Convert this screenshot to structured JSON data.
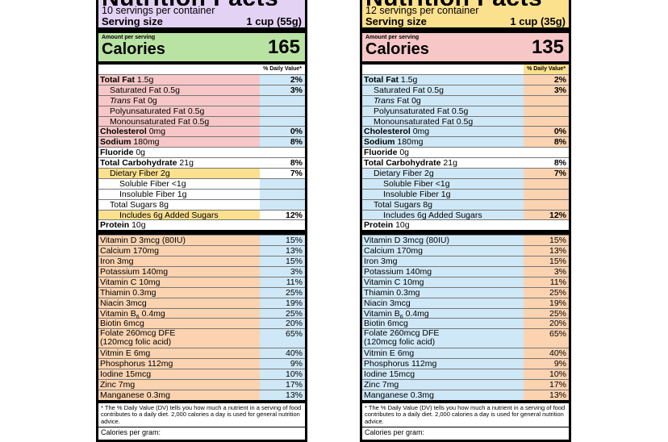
{
  "labels": [
    {
      "title": "Nutrition Facts",
      "servings": "10 servings per container",
      "serving_size_label": "Serving size",
      "serving_size_value": "1 cup (55g)",
      "amount_per_serving": "Amount per serving",
      "calories_label": "Calories",
      "calories_value": "165",
      "dv_header": "% Daily Value*",
      "colors": {
        "title_band": "#e4d2f5",
        "calories_band": "#b9e3a3",
        "fat_block": "#f7c7c7",
        "sodium_block": "#f7c7c7",
        "fiber_row": "#fbe08e",
        "added_sugar_row": "#fbe08e",
        "dv_column": "#cfe8f7",
        "vitamins_block": "#fbd3b0"
      },
      "nutrients": [
        {
          "name": "Total Fat",
          "amount": "1.5g",
          "dv": "2%",
          "indent": 0,
          "bold": true
        },
        {
          "name": "Saturated Fat",
          "amount": "0.5g",
          "dv": "3%",
          "indent": 1,
          "bold": false
        },
        {
          "name": "Trans",
          "name2": "Fat",
          "amount": "0g",
          "dv": "",
          "indent": 1,
          "bold": false,
          "italic": true
        },
        {
          "name": "Polyunsaturated Fat",
          "amount": "0.5g",
          "dv": "",
          "indent": 1,
          "bold": false
        },
        {
          "name": "Monounsaturated Fat",
          "amount": "0.5g",
          "dv": "",
          "indent": 1,
          "bold": false
        },
        {
          "name": "Cholesterol",
          "amount": "0mg",
          "dv": "0%",
          "indent": 0,
          "bold": true
        },
        {
          "name": "Sodium",
          "amount": "180mg",
          "dv": "8%",
          "indent": 0,
          "bold": true
        },
        {
          "name": "Fluoride",
          "amount": "0g",
          "dv": "",
          "indent": 0,
          "bold": true
        },
        {
          "name": "Total Carbohydrate",
          "amount": "21g",
          "dv": "8%",
          "indent": 0,
          "bold": true
        },
        {
          "name": "Dietary Fiber",
          "amount": "2g",
          "dv": "7%",
          "indent": 1,
          "bold": false
        },
        {
          "name": "Soluble Fiber",
          "amount": "<1g",
          "dv": "",
          "indent": 2,
          "bold": false
        },
        {
          "name": "Insoluble Fiber",
          "amount": "1g",
          "dv": "",
          "indent": 2,
          "bold": false
        },
        {
          "name": "Total Sugars",
          "amount": "8g",
          "dv": "",
          "indent": 1,
          "bold": false
        },
        {
          "name": "Includes 6g Added Sugars",
          "amount": "",
          "dv": "12%",
          "indent": 2,
          "bold": false
        },
        {
          "name": "Protein",
          "amount": "10g",
          "dv": "",
          "indent": 0,
          "bold": true
        }
      ],
      "vitamins": [
        {
          "text": "Vitamin D 3mcg (80IU)",
          "dv": "15%"
        },
        {
          "text": "Calcium 170mg",
          "dv": "13%"
        },
        {
          "text": "Iron 3mg",
          "dv": "15%"
        },
        {
          "text": "Potassium 140mg",
          "dv": "3%"
        },
        {
          "text": "Vitamin C 10mg",
          "dv": "11%"
        },
        {
          "text": "Thiamin 0.3mg",
          "dv": "25%"
        },
        {
          "text": "Niacin 3mcg",
          "dv": "19%"
        },
        {
          "text": "Vitamin B",
          "sub": "6",
          "text2": " 0.4mg",
          "dv": "25%"
        },
        {
          "text": "Biotin 6mcg",
          "dv": "20%"
        },
        {
          "text": "Folate 260mcg DFE",
          "text_line2": "(120mcg folic acid)",
          "dv": "65%"
        },
        {
          "text": "Vitmin E 6mg",
          "dv": "40%"
        },
        {
          "text": "Phosphorus 112mg",
          "dv": "9%"
        },
        {
          "text": "Iodine 15mcg",
          "dv": "10%"
        },
        {
          "text": "Zinc 7mg",
          "dv": "17%"
        },
        {
          "text": "Manganese 0.3mg",
          "dv": "13%"
        }
      ],
      "footnote": "* The % Daily Value (DV) tells you how much a nutrient in a serving of food contributes to a daily diet. 2,000 calories a day is used for general nutrition advice.",
      "calories_per_gram": "Calories per gram:"
    },
    {
      "title": "Nutrition Facts",
      "servings": "12 servings per container",
      "serving_size_label": "Serving size",
      "serving_size_value": "1 cup (35g)",
      "amount_per_serving": "Amount per serving",
      "calories_label": "Calories",
      "calories_value": "135",
      "dv_header": "% Daily Value*",
      "colors": {
        "title_band": "#fbe08e",
        "calories_band": "#f7c7c7",
        "dv_header_bg": "#fbe08e",
        "fat_block": "#cfe8f7",
        "sodium_block": "#cfe8f7",
        "dv_column": "#fbd3b0",
        "vitamins_block": "#cfe8f7"
      },
      "nutrients": [
        {
          "name": "Total Fat",
          "amount": "1.5g",
          "dv": "2%",
          "indent": 0,
          "bold": true
        },
        {
          "name": "Saturated Fat",
          "amount": "0.5g",
          "dv": "3%",
          "indent": 1,
          "bold": false
        },
        {
          "name": "Trans",
          "name2": "Fat",
          "amount": "0g",
          "dv": "",
          "indent": 1,
          "bold": false,
          "italic": true
        },
        {
          "name": "Polyunsaturated Fat",
          "amount": "0.5g",
          "dv": "",
          "indent": 1,
          "bold": false
        },
        {
          "name": "Monounsaturated Fat",
          "amount": "0.5g",
          "dv": "",
          "indent": 1,
          "bold": false
        },
        {
          "name": "Cholesterol",
          "amount": "0mg",
          "dv": "0%",
          "indent": 0,
          "bold": true
        },
        {
          "name": "Sodium",
          "amount": "180mg",
          "dv": "8%",
          "indent": 0,
          "bold": true
        },
        {
          "name": "Fluoride",
          "amount": "0g",
          "dv": "",
          "indent": 0,
          "bold": true
        },
        {
          "name": "Total Carbohydrate",
          "amount": "21g",
          "dv": "8%",
          "indent": 0,
          "bold": true
        },
        {
          "name": "Dietary Fiber",
          "amount": "2g",
          "dv": "7%",
          "indent": 1,
          "bold": false
        },
        {
          "name": "Soluble Fiber",
          "amount": "<1g",
          "dv": "",
          "indent": 2,
          "bold": false
        },
        {
          "name": "Insoluble Fiber",
          "amount": "1g",
          "dv": "",
          "indent": 2,
          "bold": false
        },
        {
          "name": "Total Sugars",
          "amount": "8g",
          "dv": "",
          "indent": 1,
          "bold": false
        },
        {
          "name": "Includes 6g Added Sugars",
          "amount": "",
          "dv": "12%",
          "indent": 2,
          "bold": false
        },
        {
          "name": "Protein",
          "amount": "10g",
          "dv": "",
          "indent": 0,
          "bold": true
        }
      ],
      "vitamins": [
        {
          "text": "Vitamin D 3mcg (80IU)",
          "dv": "15%"
        },
        {
          "text": "Calcium 170mg",
          "dv": "13%"
        },
        {
          "text": "Iron 3mg",
          "dv": "15%"
        },
        {
          "text": "Potassium 140mg",
          "dv": "3%"
        },
        {
          "text": "Vitamin C 10mg",
          "dv": "11%"
        },
        {
          "text": "Thiamin 0.3mg",
          "dv": "25%"
        },
        {
          "text": "Niacin 3mcg",
          "dv": "19%"
        },
        {
          "text": "Vitamin B",
          "sub": "6",
          "text2": " 0.4mg",
          "dv": "25%"
        },
        {
          "text": "Biotin 6mcg",
          "dv": "20%"
        },
        {
          "text": "Folate 260mcg DFE",
          "text_line2": "(120mcg folic acid)",
          "dv": "65%"
        },
        {
          "text": "Vitmin E 6mg",
          "dv": "40%"
        },
        {
          "text": "Phosphorus 112mg",
          "dv": "9%"
        },
        {
          "text": "Iodine 15mcg",
          "dv": "10%"
        },
        {
          "text": "Zinc 7mg",
          "dv": "17%"
        },
        {
          "text": "Manganese 0.3mg",
          "dv": "13%"
        }
      ],
      "footnote": "* The % Daily Value (DV) tells you how much a nutrient in a serving of food contributes to a daily diet. 2,000 calories a day is used for general nutrition advice.",
      "calories_per_gram": "Calories per gram:"
    }
  ]
}
